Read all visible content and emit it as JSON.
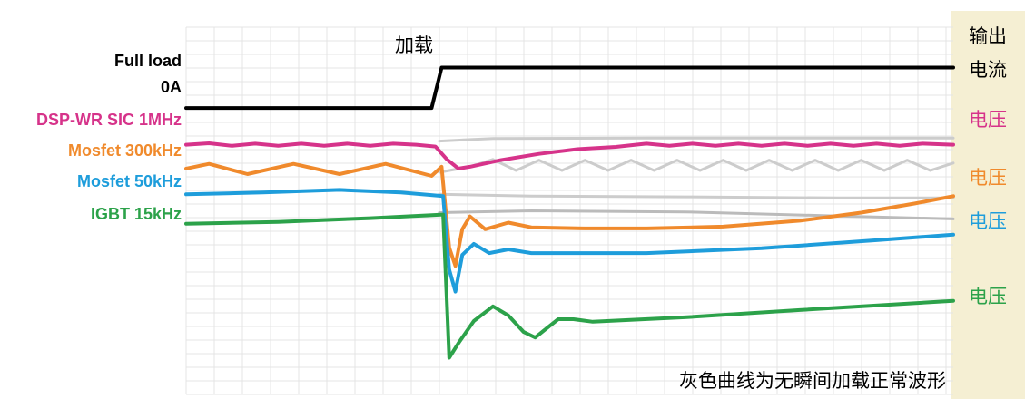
{
  "chart_data": {
    "type": "line",
    "title": "",
    "xlabel": "",
    "ylabel": "",
    "grid": true,
    "x_range": [
      0,
      100
    ],
    "y_range": [
      0,
      100
    ],
    "annotations": {
      "load_event": "加载",
      "right_header_line1": "输出",
      "right_header_line2": "电流",
      "voltage_label": "电压",
      "footnote": "灰色曲线为无瞬间加载正常波形"
    },
    "series": [
      {
        "name": "Full load / 0A",
        "level_labels": [
          "Full load",
          "0A"
        ],
        "right_label": "输出电流",
        "color": "#000000",
        "points": [
          [
            0,
            22
          ],
          [
            32,
            22
          ],
          [
            33.3,
            11
          ],
          [
            100,
            11
          ]
        ]
      },
      {
        "name": "DSP-WR SIC 1MHz",
        "right_label": "电压",
        "color": "#d6338a",
        "points": [
          [
            0,
            32
          ],
          [
            3,
            31.6
          ],
          [
            6,
            32.3
          ],
          [
            9,
            31.7
          ],
          [
            12,
            32.3
          ],
          [
            15,
            31.7
          ],
          [
            18,
            32.3
          ],
          [
            21,
            31.7
          ],
          [
            24,
            32.3
          ],
          [
            27,
            31.7
          ],
          [
            30,
            32
          ],
          [
            32.5,
            32.5
          ],
          [
            34,
            36
          ],
          [
            35.5,
            38.5
          ],
          [
            37,
            38
          ],
          [
            41,
            36.2
          ],
          [
            46,
            34.5
          ],
          [
            51,
            33.2
          ],
          [
            56,
            32.6
          ],
          [
            60,
            31.7
          ],
          [
            63,
            32.3
          ],
          [
            66,
            31.7
          ],
          [
            69,
            32.3
          ],
          [
            72,
            31.7
          ],
          [
            75,
            32.3
          ],
          [
            78,
            31.7
          ],
          [
            81,
            32.3
          ],
          [
            84,
            31.7
          ],
          [
            87,
            32.3
          ],
          [
            90,
            31.7
          ],
          [
            93,
            32.3
          ],
          [
            96,
            31.7
          ],
          [
            100,
            32
          ]
        ]
      },
      {
        "name": "Mosfet 300kHz",
        "right_label": "电压",
        "color": "#f08a2c",
        "points": [
          [
            0,
            38.5
          ],
          [
            3,
            37.2
          ],
          [
            8,
            40
          ],
          [
            14,
            37.2
          ],
          [
            20,
            40
          ],
          [
            26,
            37.2
          ],
          [
            32,
            40.5
          ],
          [
            33.3,
            38
          ],
          [
            34.3,
            60
          ],
          [
            35.1,
            65
          ],
          [
            36,
            55
          ],
          [
            37,
            51.5
          ],
          [
            39,
            55
          ],
          [
            42,
            53.2
          ],
          [
            45,
            54.5
          ],
          [
            52,
            54.8
          ],
          [
            60,
            54.8
          ],
          [
            70,
            54.3
          ],
          [
            80,
            52.7
          ],
          [
            88,
            50.5
          ],
          [
            95,
            48
          ],
          [
            100,
            46
          ]
        ]
      },
      {
        "name": "Mosfet 50kHz",
        "right_label": "电压",
        "color": "#1e9ddb",
        "points": [
          [
            0,
            45.5
          ],
          [
            10,
            45
          ],
          [
            20,
            44.3
          ],
          [
            28,
            45
          ],
          [
            33.5,
            46
          ],
          [
            34.3,
            66
          ],
          [
            35.1,
            72
          ],
          [
            36,
            62
          ],
          [
            37.5,
            59
          ],
          [
            39.5,
            61.5
          ],
          [
            42,
            60.5
          ],
          [
            45,
            61.5
          ],
          [
            60,
            61.5
          ],
          [
            75,
            60.2
          ],
          [
            90,
            58
          ],
          [
            100,
            56.5
          ]
        ]
      },
      {
        "name": "IGBT 15kHz",
        "right_label": "电压",
        "color": "#2ca24a",
        "points": [
          [
            0,
            53.5
          ],
          [
            12,
            53
          ],
          [
            24,
            52
          ],
          [
            33.5,
            51
          ],
          [
            34.3,
            90
          ],
          [
            35.5,
            86
          ],
          [
            37.5,
            80
          ],
          [
            40,
            76
          ],
          [
            42,
            78.5
          ],
          [
            44,
            83
          ],
          [
            45.5,
            84.5
          ],
          [
            47,
            82
          ],
          [
            48.5,
            79.5
          ],
          [
            50.5,
            79.5
          ],
          [
            53,
            80.2
          ],
          [
            65,
            79
          ],
          [
            80,
            77
          ],
          [
            100,
            74.5
          ]
        ]
      },
      {
        "name": "normal_dsp",
        "color": "#cccccc",
        "points": [
          [
            33,
            31
          ],
          [
            40,
            30.3
          ],
          [
            60,
            30.2
          ],
          [
            100,
            30.2
          ]
        ]
      },
      {
        "name": "normal_300k",
        "color": "#cccccc",
        "points": [
          [
            33,
            39.5
          ],
          [
            37,
            38
          ],
          [
            40,
            36
          ],
          [
            43,
            39
          ],
          [
            46,
            36.2
          ],
          [
            49,
            39
          ],
          [
            52,
            36.2
          ],
          [
            55,
            39
          ],
          [
            58,
            36.2
          ],
          [
            61,
            39
          ],
          [
            64,
            36.2
          ],
          [
            67,
            39
          ],
          [
            70,
            36.2
          ],
          [
            73,
            39
          ],
          [
            76,
            36.2
          ],
          [
            79,
            39
          ],
          [
            82,
            36.2
          ],
          [
            85,
            39
          ],
          [
            88,
            36.2
          ],
          [
            91,
            39
          ],
          [
            94,
            36.2
          ],
          [
            97,
            39
          ],
          [
            100,
            37
          ]
        ]
      },
      {
        "name": "normal_50k",
        "color": "#cccccc",
        "points": [
          [
            33,
            45.5
          ],
          [
            45,
            46
          ],
          [
            65,
            46.2
          ],
          [
            85,
            46.5
          ],
          [
            100,
            46.5
          ]
        ]
      },
      {
        "name": "normal_igbt",
        "color": "#bbbbbb",
        "points": [
          [
            33,
            50.5
          ],
          [
            45,
            50
          ],
          [
            65,
            50.3
          ],
          [
            85,
            51.4
          ],
          [
            100,
            52.2
          ]
        ]
      }
    ]
  }
}
